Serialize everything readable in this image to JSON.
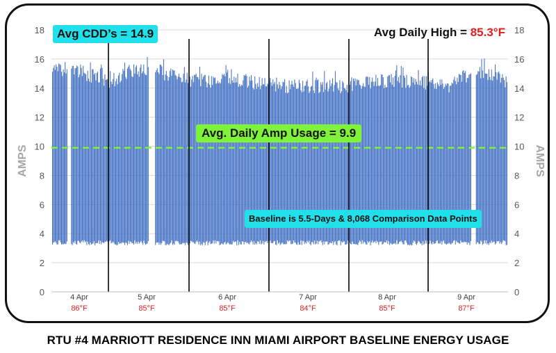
{
  "chart_data": {
    "type": "line",
    "title": "RTU #4 MARRIOTT RESIDENCE INN MIAMI AIRPORT BASELINE ENERGY USAGE",
    "ylabel_left": "AMPS",
    "ylabel_right": "AMPS",
    "ylim": [
      0,
      18
    ],
    "y_ticks": [
      0,
      2,
      4,
      6,
      8,
      10,
      12,
      14,
      16,
      18
    ],
    "grid": true,
    "x_ticks": [
      {
        "label": "4 Apr",
        "temp": "86°F"
      },
      {
        "label": "5 Apr",
        "temp": "85°F"
      },
      {
        "label": "6 Apr",
        "temp": "85°F"
      },
      {
        "label": "7 Apr",
        "temp": "84°F"
      },
      {
        "label": "8 Apr",
        "temp": "85°F"
      },
      {
        "label": "9 Apr",
        "temp": "87°F"
      }
    ],
    "series": [
      {
        "color": "#4472c4",
        "low_value": 3.4,
        "high_envelope": [
          15.6,
          16.0,
          15.2,
          15.0,
          15.7,
          15.8,
          15.4,
          15.0,
          15.0,
          15.2,
          14.9,
          14.8,
          14.6,
          14.6,
          14.7,
          14.6,
          14.9,
          15.0,
          15.0,
          14.8,
          14.7,
          15.4,
          15.5,
          14.9
        ]
      }
    ],
    "average_line": {
      "value": 9.9,
      "color": "#7ef33a",
      "style": "dashed"
    }
  },
  "annotations": {
    "avg_cdd": "Avg CDD’s = 14.9",
    "avg_daily_high_label": "Avg Daily High = ",
    "avg_daily_high_value": "85.3°F",
    "avg_daily_amp": "Avg. Daily Amp Usage = 9.9",
    "baseline": "Baseline is 5.5-Days & 8,068 Comparison Data Points"
  },
  "colors": {
    "bars": "#4472c4",
    "avg_line": "#7ef33a",
    "cyan_box": "#22e0ea",
    "green_box": "#7ef33a",
    "temp_text": "#e02020"
  }
}
